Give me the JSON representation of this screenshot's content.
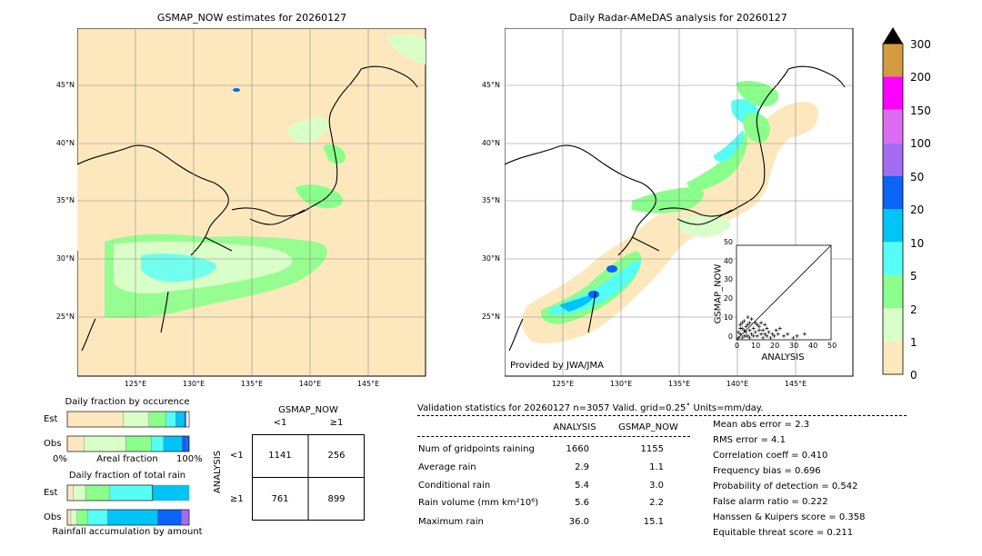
{
  "maps": {
    "left_title": "GSMAP_NOW estimates for 20260127",
    "right_title": "Daily Radar-AMeDAS analysis for 20260127",
    "lat_labels": [
      "45°N",
      "40°N",
      "35°N",
      "30°N",
      "25°N"
    ],
    "lon_labels": [
      "125°E",
      "130°E",
      "135°E",
      "140°E",
      "145°E"
    ],
    "credit": "Provided by JWA/JMA",
    "land_color": "#fde8be",
    "sea_color": "#ffffff"
  },
  "colorbar": {
    "labels": [
      "300",
      "200",
      "150",
      "100",
      "50",
      "20",
      "10",
      "5",
      "2",
      "1",
      "0"
    ],
    "colors": [
      "#d29b3f",
      "#ff00ff",
      "#dd6cf3",
      "#a46cf3",
      "#0a64f6",
      "#00c4f6",
      "#55fff6",
      "#8bff8b",
      "#d9ffc8",
      "#fde8be"
    ]
  },
  "scatter": {
    "xlabel": "ANALYSIS",
    "ylabel": "GSMAP_NOW",
    "ticks": [
      "0",
      "10",
      "20",
      "30",
      "40",
      "50"
    ]
  },
  "occurrence": {
    "title": "Daily fraction by occurence",
    "rows": [
      "Est",
      "Obs"
    ],
    "axis_left": "0%",
    "axis_mid": "Areal fraction",
    "axis_right": "100%"
  },
  "total_rain": {
    "title": "Daily fraction of total rain",
    "rows": [
      "Est",
      "Obs"
    ],
    "footer": "Rainfall accumulation by amount"
  },
  "contingency": {
    "col_header": "GSMAP_NOW",
    "col_labels": [
      "<1",
      "≥1"
    ],
    "row_header": "ANALYSIS",
    "row_labels": [
      "<1",
      "≥1"
    ],
    "cells": [
      [
        "1141",
        "256"
      ],
      [
        "761",
        "899"
      ]
    ]
  },
  "validation": {
    "header": "Validation statistics for 20260127  n=3057 Valid. grid=0.25˚ Units=mm/day.",
    "col_analysis": "ANALYSIS",
    "col_gsmap": "GSMAP_NOW",
    "rows": [
      {
        "label": "Num of gridpoints raining",
        "analysis": "1660",
        "gsmap": "1155"
      },
      {
        "label": "Average rain",
        "analysis": "2.9",
        "gsmap": "1.1"
      },
      {
        "label": "Conditional rain",
        "analysis": "5.4",
        "gsmap": "3.0"
      },
      {
        "label": "Rain volume (mm km²10⁶)",
        "analysis": "5.6",
        "gsmap": "2.2"
      },
      {
        "label": "Maximum rain",
        "analysis": "36.0",
        "gsmap": "15.1"
      }
    ],
    "scores": [
      "Mean abs error =    2.3",
      "RMS error =    4.1",
      "Correlation coeff =  0.410",
      "Frequency bias =  0.696",
      "Probability of detection =  0.542",
      "False alarm ratio =  0.222",
      "Hanssen & Kuipers score =  0.358",
      "Equitable threat score =  0.211"
    ]
  },
  "chart_data": [
    {
      "type": "scatter",
      "title": "",
      "xlabel": "ANALYSIS",
      "ylabel": "GSMAP_NOW",
      "xlim": [
        0,
        50
      ],
      "ylim": [
        0,
        50
      ],
      "points": [
        [
          1,
          1
        ],
        [
          2,
          3
        ],
        [
          3,
          1
        ],
        [
          4,
          2
        ],
        [
          5,
          4
        ],
        [
          6,
          2
        ],
        [
          7,
          5
        ],
        [
          8,
          3
        ],
        [
          9,
          6
        ],
        [
          10,
          4
        ],
        [
          11,
          2
        ],
        [
          12,
          7
        ],
        [
          13,
          3
        ],
        [
          14,
          5
        ],
        [
          15,
          8
        ],
        [
          16,
          2
        ],
        [
          17,
          4
        ],
        [
          18,
          1
        ],
        [
          19,
          3
        ],
        [
          20,
          2
        ],
        [
          21,
          5
        ],
        [
          22,
          3
        ],
        [
          23,
          6
        ],
        [
          25,
          2
        ],
        [
          27,
          3
        ],
        [
          30,
          1
        ],
        [
          32,
          2
        ],
        [
          36,
          3
        ],
        [
          2,
          8
        ],
        [
          4,
          10
        ],
        [
          6,
          12
        ],
        [
          8,
          11
        ],
        [
          10,
          9
        ],
        [
          3,
          6
        ],
        [
          5,
          7
        ],
        [
          7,
          9
        ],
        [
          1,
          4
        ],
        [
          2,
          6
        ],
        [
          6,
          8
        ],
        [
          12,
          5
        ],
        [
          11,
          8
        ],
        [
          9,
          2
        ],
        [
          14,
          1
        ],
        [
          16,
          6
        ],
        [
          13,
          9
        ],
        [
          15,
          3
        ],
        [
          7,
          1
        ],
        [
          4,
          5
        ],
        [
          3,
          9
        ],
        [
          5,
          2
        ]
      ],
      "diagonal": true
    },
    {
      "type": "bar",
      "title": "Daily fraction by occurence",
      "categories": [
        "Est",
        "Obs"
      ],
      "series": [
        {
          "values": [
            0.21,
            0.34
          ]
        },
        {
          "values": [
            0.14,
            0.21
          ]
        },
        {
          "values": [
            0.08,
            0.1
          ]
        },
        {
          "values": [
            0.07,
            0.15
          ]
        },
        {
          "values": [
            0.012,
            0.04
          ]
        },
        {
          "values": [
            0.005,
            0.02
          ]
        }
      ],
      "baseline_fraction": [
        0.46,
        0.14
      ]
    },
    {
      "type": "bar",
      "title": "Daily fraction of total rain",
      "categories": [
        "Est",
        "Obs"
      ],
      "series": [
        {
          "values": [
            0.05,
            0.03
          ]
        },
        {
          "values": [
            0.1,
            0.05
          ]
        },
        {
          "values": [
            0.2,
            0.09
          ]
        },
        {
          "values": [
            0.35,
            0.16
          ]
        },
        {
          "values": [
            0.3,
            0.41
          ]
        },
        {
          "values": [
            0.0,
            0.2
          ]
        },
        {
          "values": [
            0.0,
            0.06
          ]
        }
      ]
    }
  ]
}
